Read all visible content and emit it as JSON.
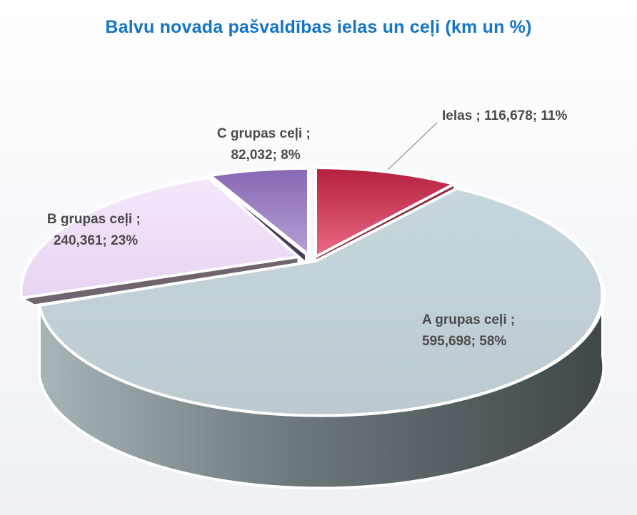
{
  "chart_data": {
    "type": "pie",
    "title": "Balvu novada pašvaldības ielas un ceļi (km un %)",
    "categories": [
      "Ielas",
      "A grupas ceļi",
      "B grupas ceļi",
      "C grupas ceļi"
    ],
    "values": [
      116.678,
      595.698,
      240.361,
      82.032
    ],
    "percentages": [
      11,
      58,
      23,
      8
    ],
    "data_labels": [
      {
        "line1": "Ielas ; 116,678; 11%",
        "line2": ""
      },
      {
        "line1": "A grupas ceļi ;",
        "line2": "595,698; 58%"
      },
      {
        "line1": "B grupas ceļi ;",
        "line2": "240,361; 23%"
      },
      {
        "line1": "C grupas ceļi ;",
        "line2": "82,032; 8%"
      }
    ],
    "colors": {
      "Ielas": "#c7334f",
      "A grupas ceļi": "#c2d2da",
      "B grupas ceļi": "#efdff9",
      "C grupas ceļi": "#9e7fc1"
    },
    "style": "3d exploded pie"
  }
}
